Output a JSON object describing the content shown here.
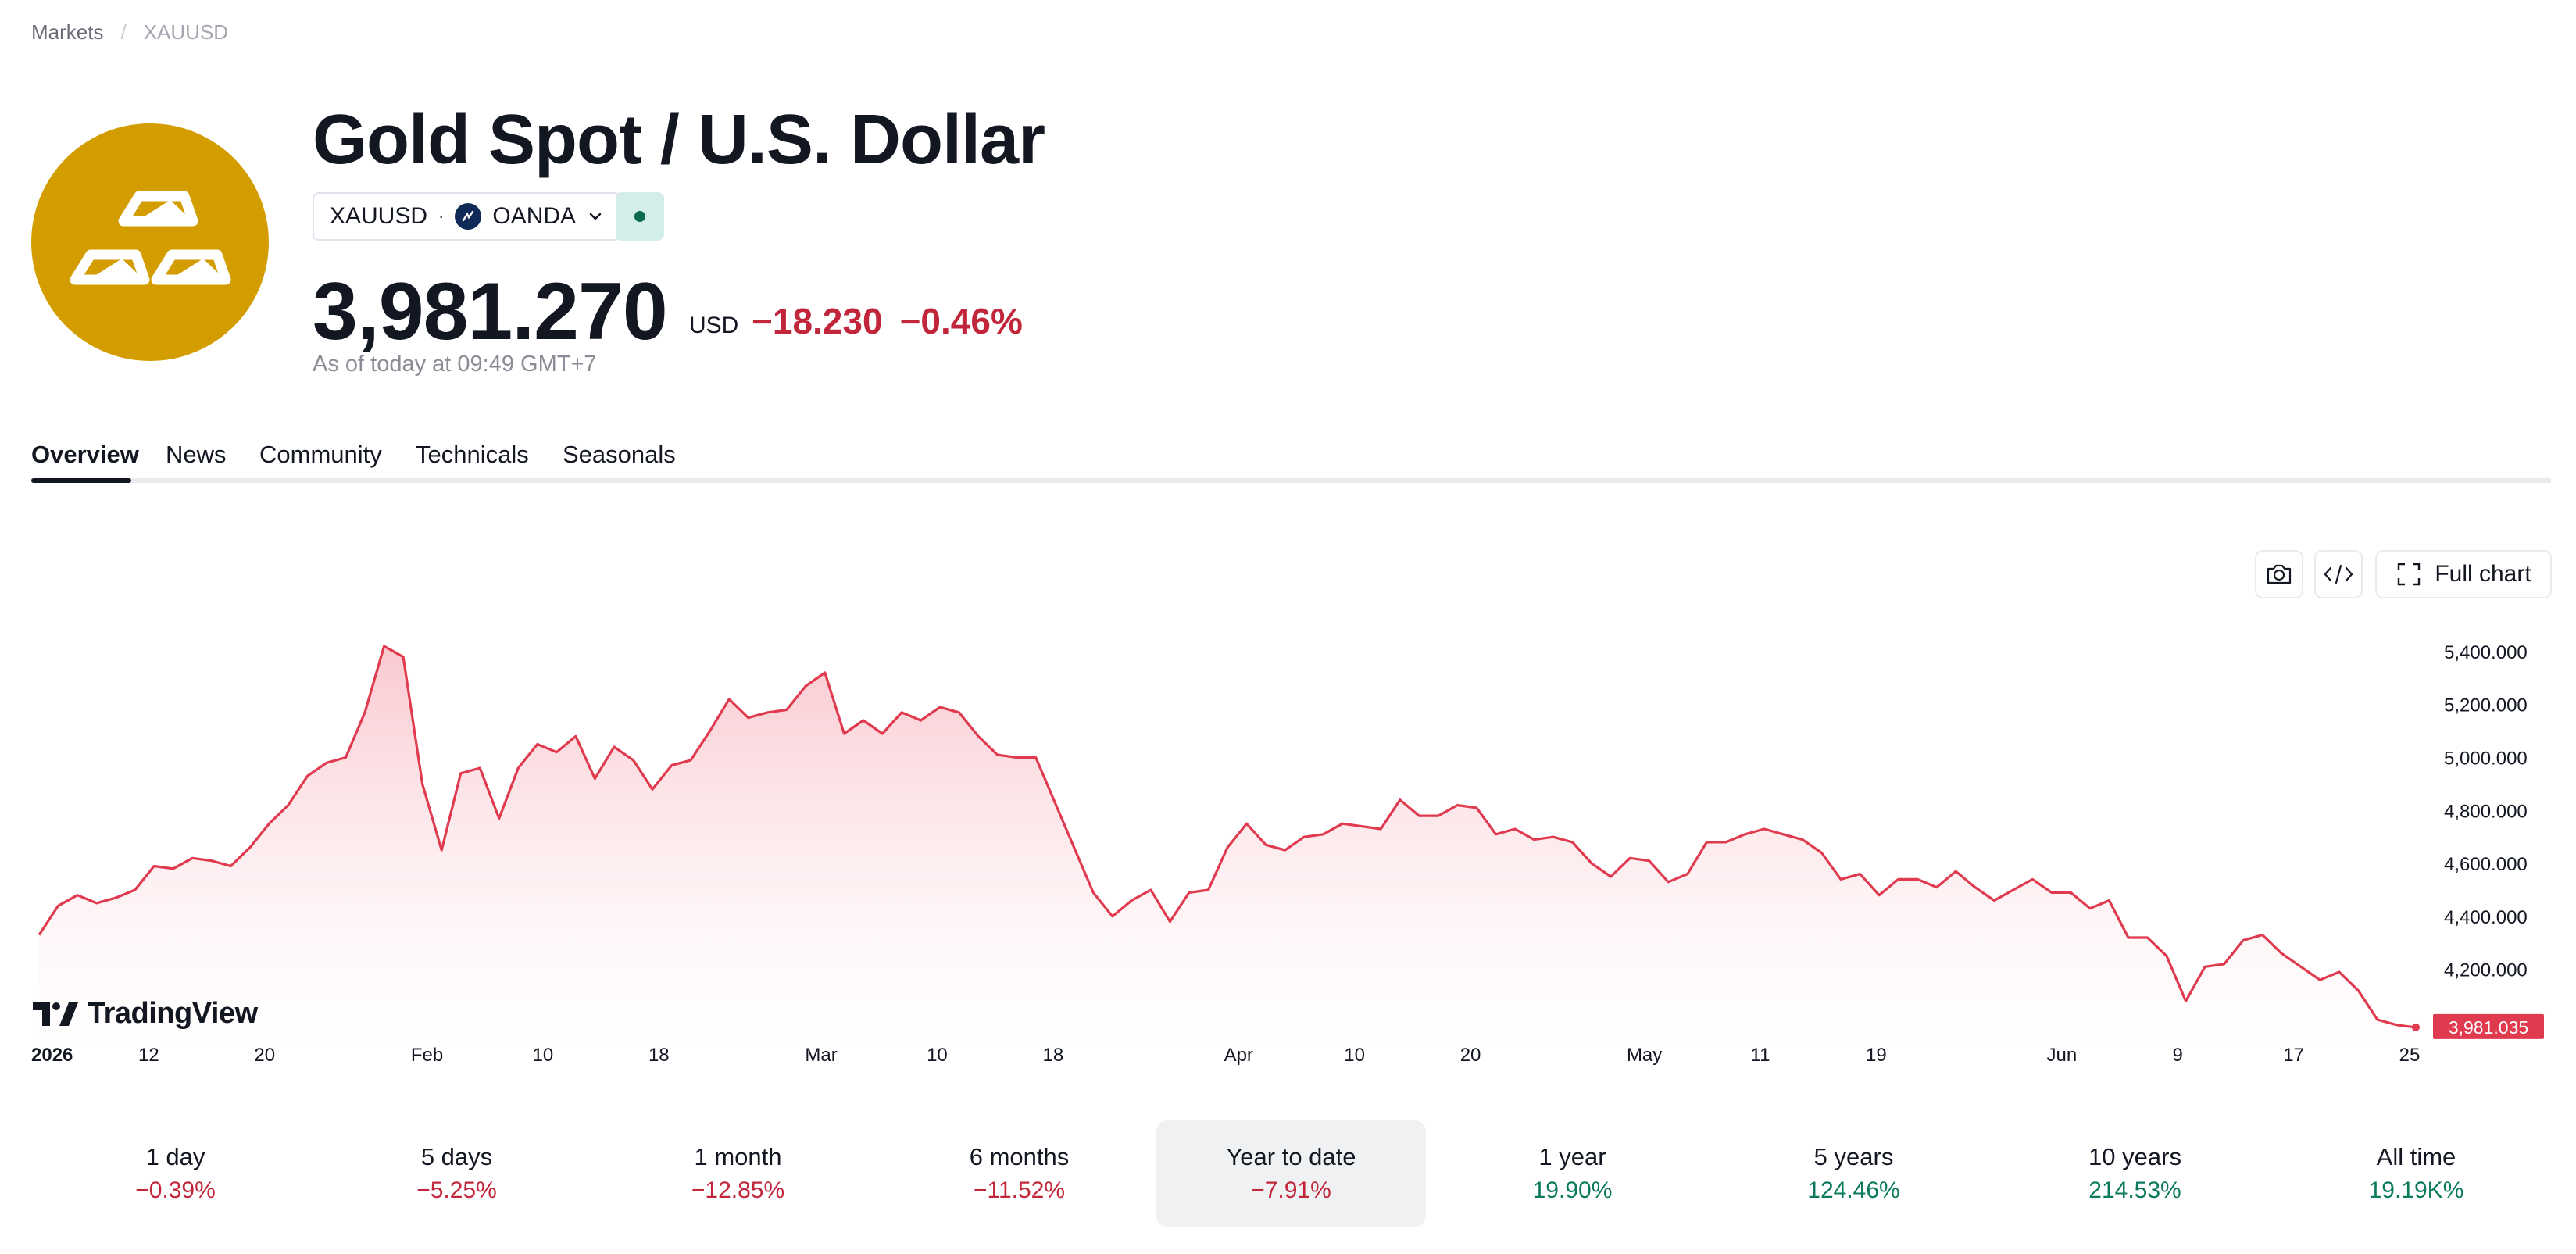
{
  "breadcrumb": {
    "root": "Markets",
    "separator": "/",
    "current": "XAUUSD"
  },
  "header": {
    "title": "Gold Spot / U.S. Dollar",
    "symbol": "XAUUSD",
    "dot": "·",
    "broker": "OANDA",
    "logo_icon": "gold-bars-icon",
    "status": "market-open"
  },
  "quote": {
    "price": "3,981.270",
    "currency": "USD",
    "change": "−18.230",
    "change_pct": "−0.46%",
    "as_of": "As of today at 09:49 GMT+7"
  },
  "tabs": [
    {
      "label": "Overview",
      "active": true
    },
    {
      "label": "News",
      "active": false
    },
    {
      "label": "Community",
      "active": false
    },
    {
      "label": "Technicals",
      "active": false
    },
    {
      "label": "Seasonals",
      "active": false
    }
  ],
  "toolbar": {
    "snapshot_icon": "camera-icon",
    "embed_icon": "code-icon",
    "full_chart_label": "Full chart"
  },
  "brand": "TradingView",
  "colors": {
    "line": "#e03a4e",
    "negative": "#c2263b",
    "positive": "#0b7a5c",
    "logo": "#d39d00"
  },
  "chart_data": {
    "type": "area",
    "series": [
      {
        "values": [
          4330,
          4440,
          4480,
          4450,
          4470,
          4500,
          4590,
          4580,
          4620,
          4610,
          4590,
          4660,
          4750,
          4820,
          4930,
          4980,
          5000,
          5170,
          5420,
          5380,
          4900,
          4650,
          4940,
          4960,
          4770,
          4960,
          5050,
          5020,
          5080,
          4920,
          5040,
          4990,
          4880,
          4970,
          4990,
          5100,
          5220,
          5150,
          5170,
          5180,
          5270,
          5320,
          5090,
          5140,
          5090,
          5170,
          5140,
          5190,
          5170,
          5080,
          5010,
          5000,
          5000,
          4830,
          4660,
          4490,
          4400,
          4460,
          4500,
          4380,
          4490,
          4500,
          4660,
          4750,
          4670,
          4650,
          4700,
          4710,
          4750,
          4740,
          4730,
          4840,
          4780,
          4780,
          4820,
          4810,
          4710,
          4730,
          4690,
          4700,
          4680,
          4600,
          4550,
          4620,
          4610,
          4530,
          4560,
          4680,
          4680,
          4710,
          4730,
          4710,
          4690,
          4640,
          4540,
          4560,
          4480,
          4540,
          4540,
          4510,
          4570,
          4510,
          4460,
          4500,
          4540,
          4490,
          4490,
          4430,
          4460,
          4320,
          4320,
          4250,
          4080,
          4210,
          4220,
          4310,
          4330,
          4260,
          4210,
          4160,
          4190,
          4120,
          4010,
          3990,
          3981.035
        ]
      }
    ],
    "x_ticks": [
      "2026",
      "12",
      "20",
      "Feb",
      "10",
      "18",
      "Mar",
      "10",
      "18",
      "Apr",
      "10",
      "20",
      "May",
      "11",
      "19",
      "Jun",
      "9",
      "17",
      "25"
    ],
    "y_ticks": [
      "5,400.000",
      "5,200.000",
      "5,000.000",
      "4,800.000",
      "4,600.000",
      "4,400.000",
      "4,200.000"
    ],
    "ylim": [
      3960,
      5500
    ],
    "last_value_label": "3,981.035",
    "grid": false
  },
  "ranges": [
    {
      "label": "1 day",
      "value": "−0.39%",
      "sign": "neg",
      "selected": false
    },
    {
      "label": "5 days",
      "value": "−5.25%",
      "sign": "neg",
      "selected": false
    },
    {
      "label": "1 month",
      "value": "−12.85%",
      "sign": "neg",
      "selected": false
    },
    {
      "label": "6 months",
      "value": "−11.52%",
      "sign": "neg",
      "selected": false
    },
    {
      "label": "Year to date",
      "value": "−7.91%",
      "sign": "neg",
      "selected": true
    },
    {
      "label": "1 year",
      "value": "19.90%",
      "sign": "pos",
      "selected": false
    },
    {
      "label": "5 years",
      "value": "124.46%",
      "sign": "pos",
      "selected": false
    },
    {
      "label": "10 years",
      "value": "214.53%",
      "sign": "pos",
      "selected": false
    },
    {
      "label": "All time",
      "value": "19.19K%",
      "sign": "pos",
      "selected": false
    }
  ]
}
